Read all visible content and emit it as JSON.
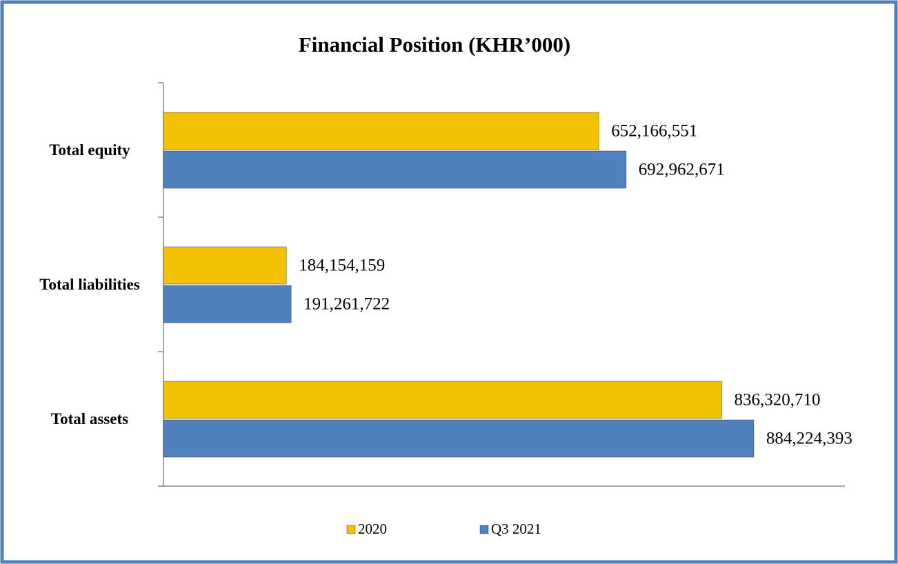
{
  "chart_data": {
    "type": "barh",
    "title": "Financial Position   (KHR’000)",
    "categories": [
      "Total assets",
      "Total liabilities",
      "Total equity"
    ],
    "series": [
      {
        "name": "2020",
        "color": "#f2c200",
        "values": [
          836320710,
          184154159,
          652166551
        ],
        "value_labels": [
          "836,320,710",
          "184,154,159",
          "652,166,551"
        ]
      },
      {
        "name": "Q3 2021",
        "color": "#4f81bd",
        "values": [
          884224393,
          191261722,
          692962671
        ],
        "value_labels": [
          "884,224,393",
          "191,261,722",
          "692,962,671"
        ]
      }
    ],
    "xlim": [
      0,
      1000000000
    ],
    "legend": "bottom"
  }
}
